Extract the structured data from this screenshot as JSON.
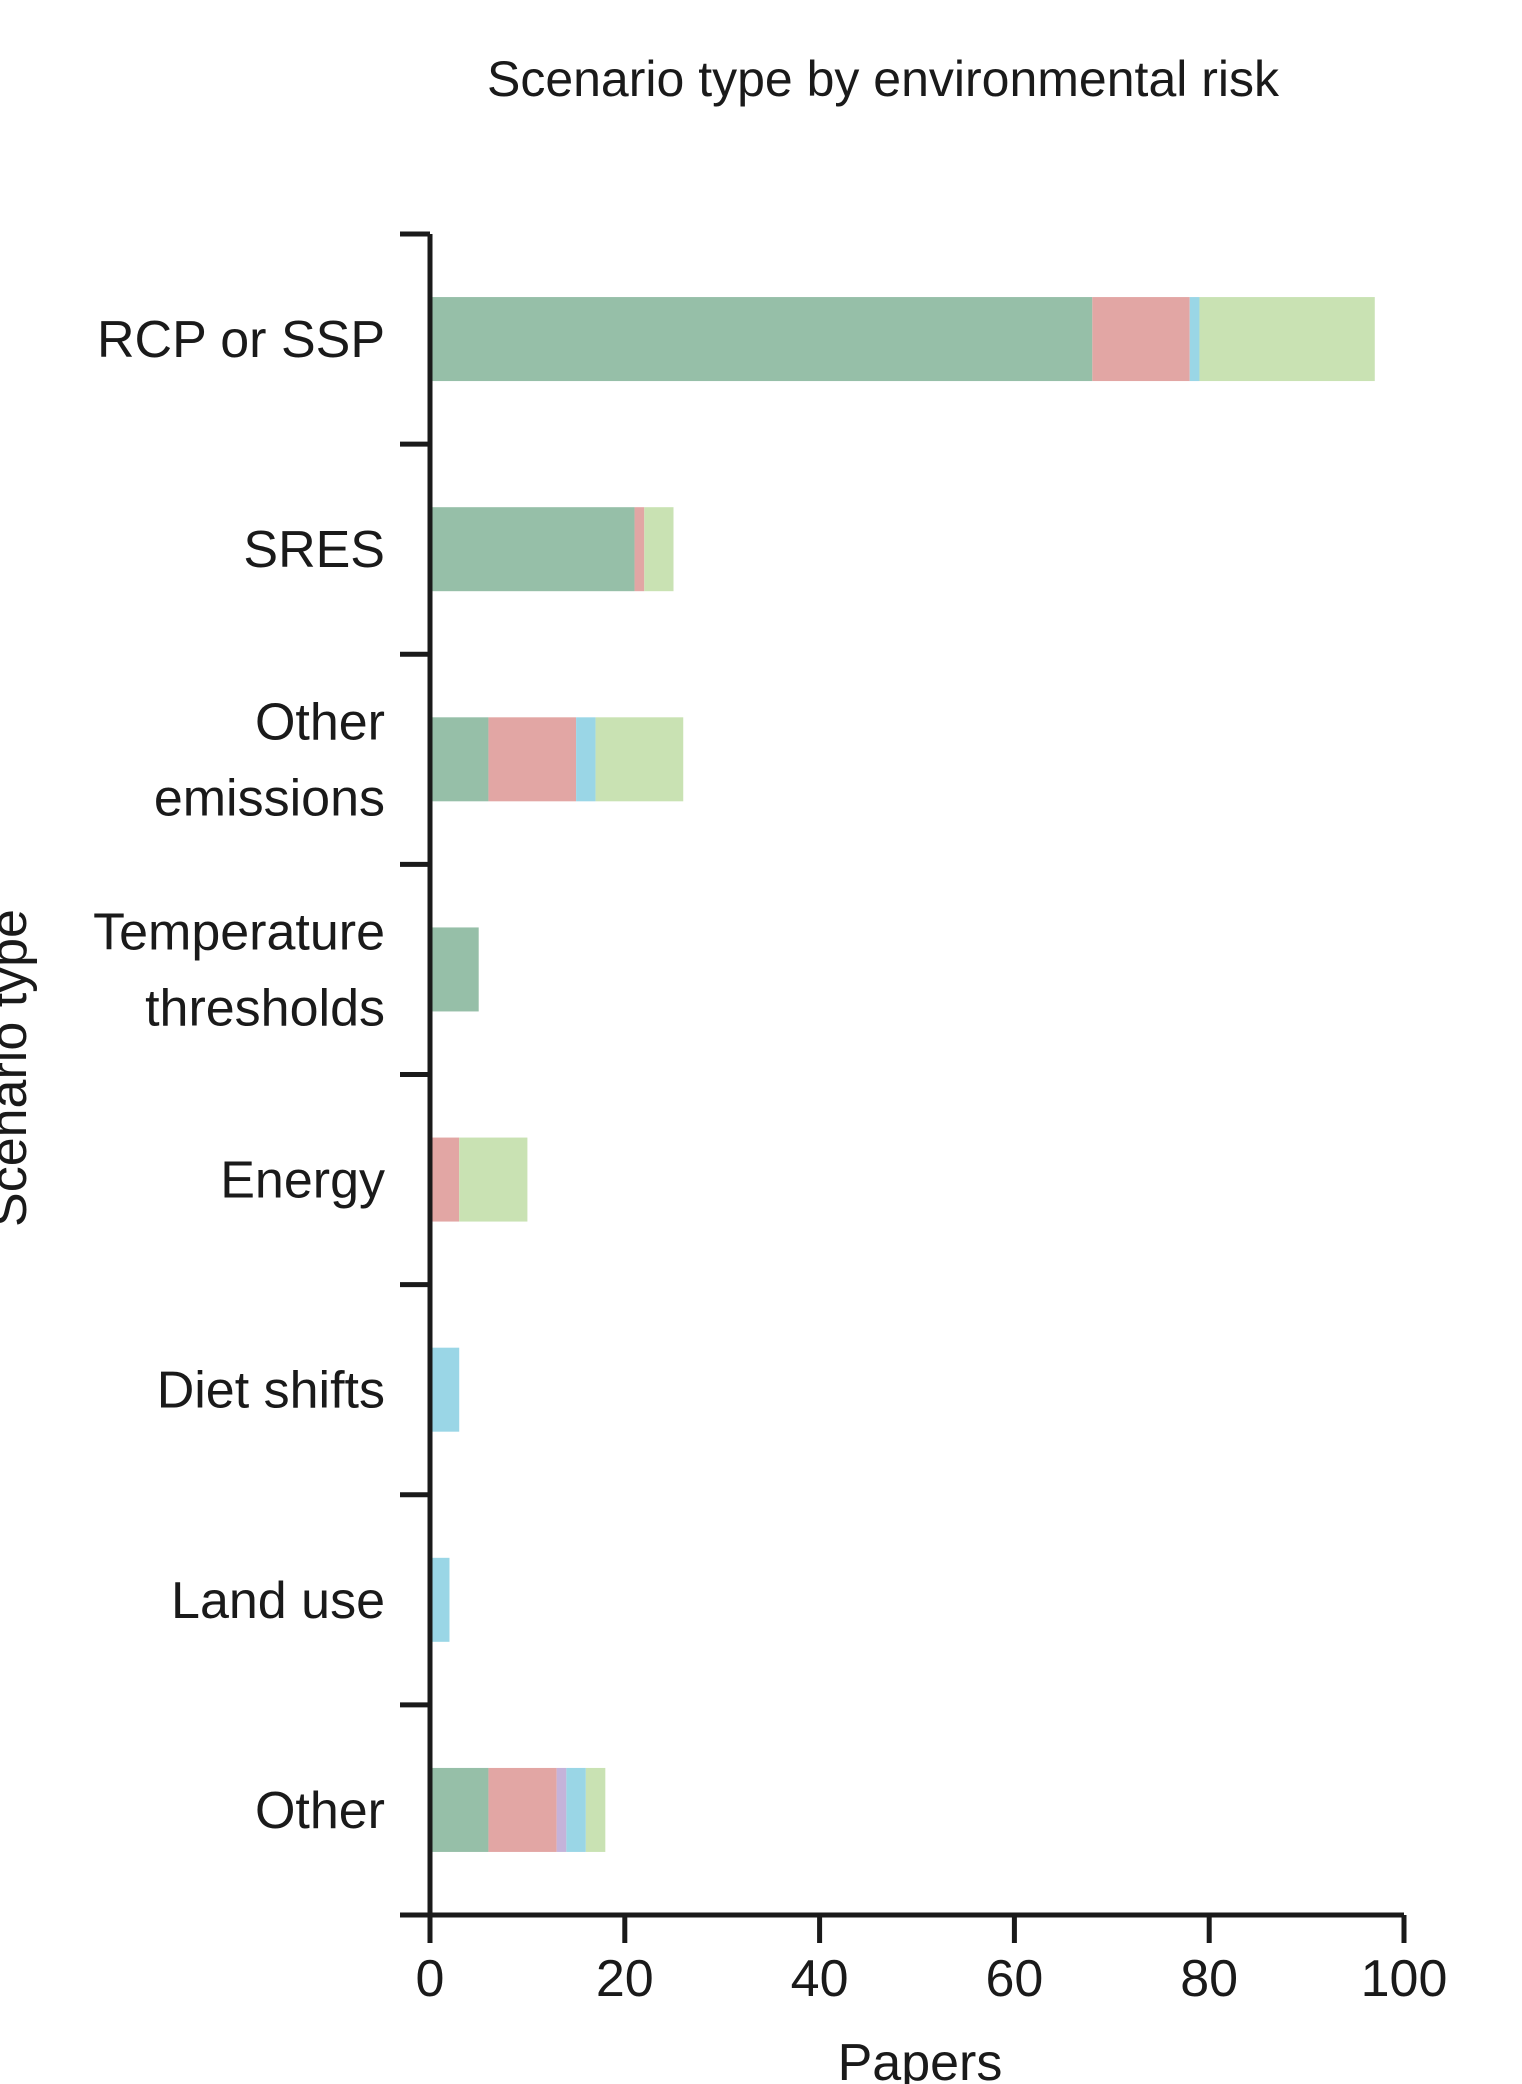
{
  "chart_data": {
    "type": "bar",
    "orientation": "horizontal",
    "stacked": true,
    "title": "Scenario type by environmental risk",
    "xlabel": "Papers",
    "ylabel": "Scenario type",
    "xlim": [
      0,
      100
    ],
    "x_ticks": [
      "0",
      "20",
      "40",
      "60",
      "80",
      "100"
    ],
    "grid": false,
    "categories": [
      [
        "RCP or SSP"
      ],
      [
        "SRES"
      ],
      [
        "Other",
        "emissions"
      ],
      [
        "Temperature",
        "thresholds"
      ],
      [
        "Energy"
      ],
      [
        "Diet shifts"
      ],
      [
        "Land use"
      ],
      [
        "Other"
      ]
    ],
    "series": [
      {
        "color": "#96bfa8",
        "values": [
          68,
          21,
          6,
          5,
          0,
          0,
          0,
          6
        ]
      },
      {
        "color": "#e2a6a4",
        "values": [
          10,
          1,
          9,
          0,
          3,
          0,
          0,
          7
        ]
      },
      {
        "color": "#c5b3da",
        "values": [
          0,
          0,
          0,
          0,
          0,
          0,
          0,
          1
        ]
      },
      {
        "color": "#9ad6e6",
        "values": [
          1,
          0,
          2,
          0,
          0,
          3,
          2,
          2
        ]
      },
      {
        "color": "#c9e2b3",
        "values": [
          18,
          3,
          9,
          0,
          7,
          0,
          0,
          2
        ]
      }
    ]
  }
}
